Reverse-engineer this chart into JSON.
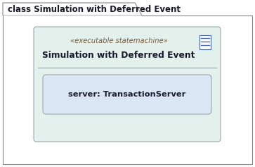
{
  "bg_color": "#ffffff",
  "outer_border_color": "#888888",
  "outer_bg": "#ffffff",
  "tab_label": "class Simulation with Deferred Event",
  "tab_label_fontsize": 8.5,
  "tab_label_color": "#1a1a2e",
  "inner_box_bg": "#e3f0ec",
  "inner_box_border": "#99aaaa",
  "stereotype_text": "«executable statemachine»",
  "stereotype_fontsize": 7.2,
  "stereotype_color": "#7a5c3a",
  "class_name": "Simulation with Deferred Event",
  "class_name_fontsize": 8.8,
  "class_name_color": "#1a1a2e",
  "attr_box_bg": "#dbe6f5",
  "attr_box_border": "#99aaaa",
  "attr_text": "server: TransactionServer",
  "attr_fontsize": 8.2,
  "attr_color": "#1a1a2e",
  "icon_color": "#4466aa",
  "icon_bg": "#ffffff"
}
